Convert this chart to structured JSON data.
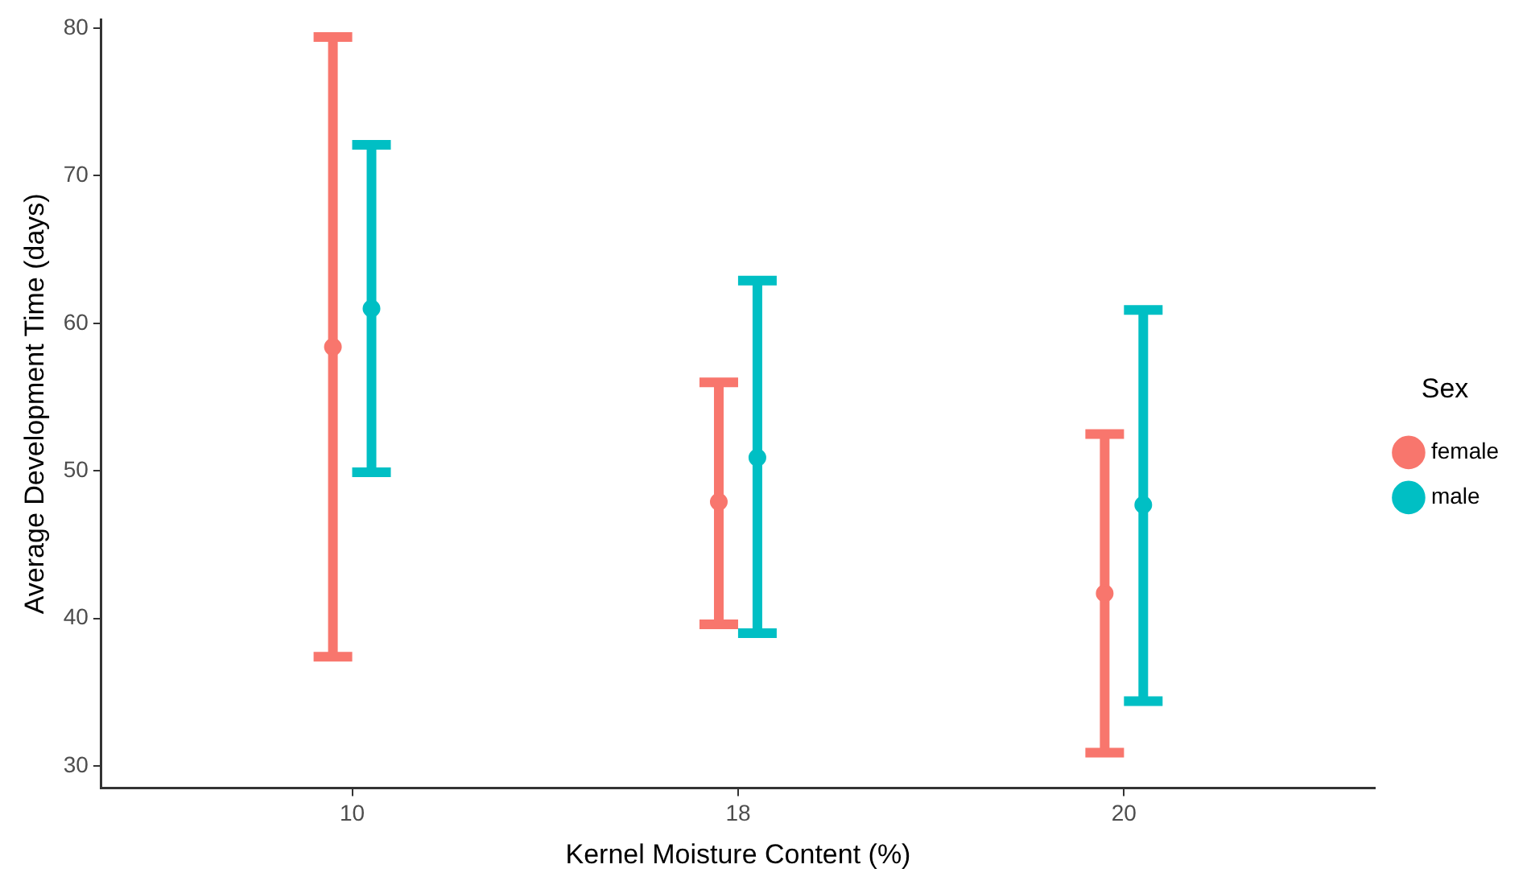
{
  "chart_data": {
    "type": "scatter",
    "xlabel": "Kernel Moisture Content (%)",
    "ylabel": "Average Development Time (days)",
    "legend_title": "Sex",
    "categories": [
      "10",
      "18",
      "20"
    ],
    "series": [
      {
        "name": "female",
        "color": "#f8766d",
        "values": [
          58.4,
          47.9,
          41.7
        ],
        "errors": [
          [
            37.4,
            79.4
          ],
          [
            39.6,
            56.0
          ],
          [
            30.9,
            52.5
          ]
        ]
      },
      {
        "name": "male",
        "color": "#00bfc4",
        "values": [
          61.0,
          50.9,
          47.7
        ],
        "errors": [
          [
            49.9,
            72.1
          ],
          [
            39.0,
            62.9
          ],
          [
            34.4,
            60.9
          ]
        ]
      }
    ],
    "ylim": [
      28.5,
      80.6
    ],
    "yticks": [
      30,
      40,
      50,
      60,
      70,
      80
    ],
    "grid": false,
    "legend": "right",
    "marker": "circle"
  }
}
